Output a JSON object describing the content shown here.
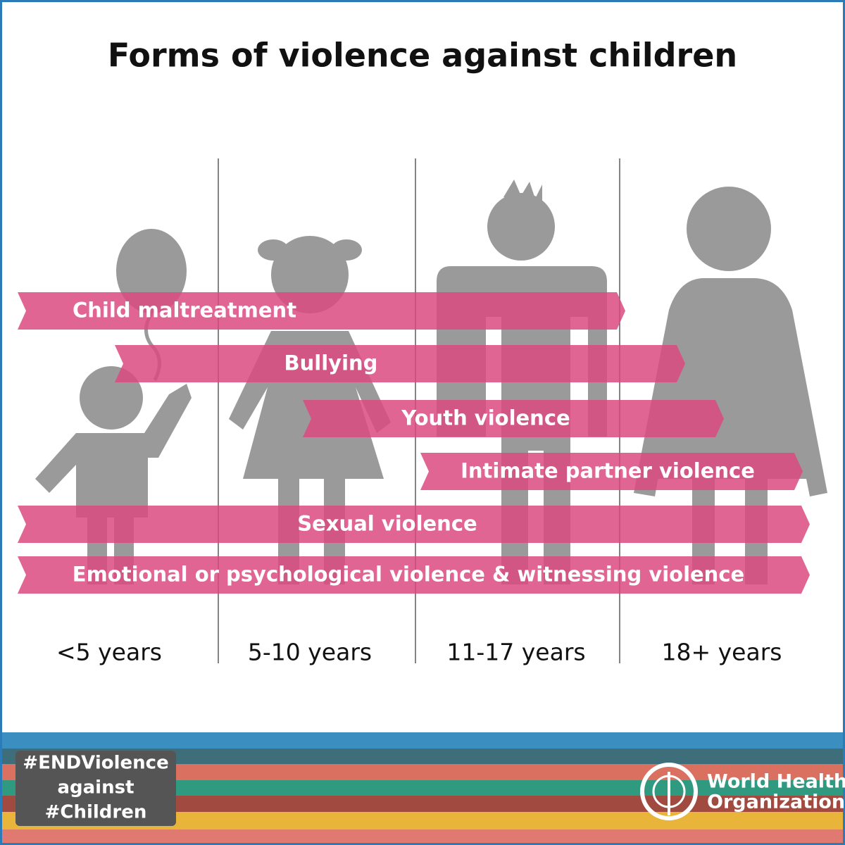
{
  "title": "Forms of violence against children",
  "bands": [
    {
      "label": "Child maltreatment"
    },
    {
      "label": "Bullying"
    },
    {
      "label": "Youth violence"
    },
    {
      "label": "Intimate partner violence"
    },
    {
      "label": "Sexual violence"
    },
    {
      "label": "Emotional or psychological violence & witnessing violence"
    }
  ],
  "age_groups": [
    "<5 years",
    "5-10 years",
    "11-17 years",
    "18+ years"
  ],
  "campaign": {
    "lines": [
      "#ENDViolence",
      "against",
      "#Children"
    ]
  },
  "organization": {
    "lines": [
      "World Health",
      "Organization"
    ]
  }
}
